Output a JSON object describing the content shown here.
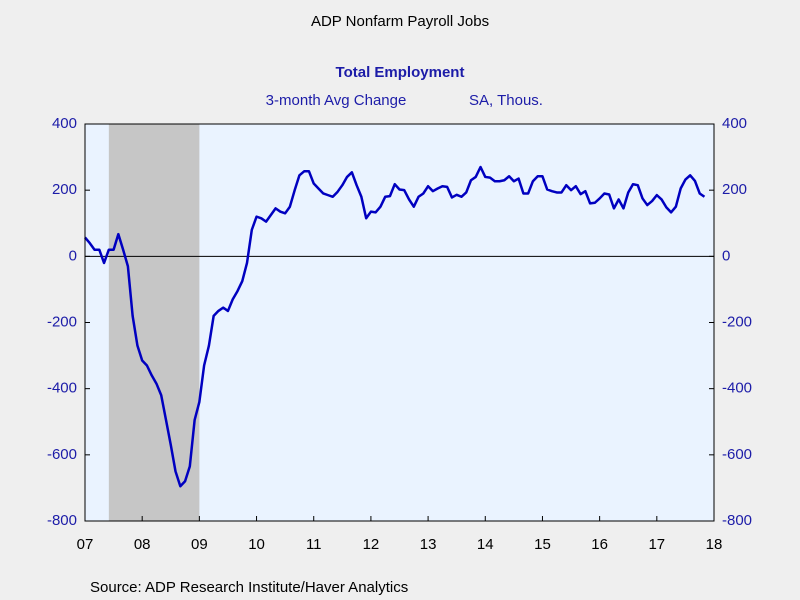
{
  "chart_data": {
    "type": "line",
    "title": "ADP Nonfarm Payroll Jobs",
    "subtitle": "Total Employment",
    "y_axis_label": "3-month Avg Change",
    "units_label": "SA, Thous.",
    "source": "Source:  ADP Research Institute/Haver Analytics",
    "x": [
      2007.5,
      2007.583,
      2007.667,
      2007.75,
      2007.833,
      2007.917,
      2008,
      2008.083,
      2008.167,
      2008.25,
      2008.333,
      2008.417,
      2008.5,
      2008.583,
      2008.667,
      2008.75,
      2008.833,
      2008.917,
      2009,
      2009.083,
      2009.167,
      2009.25,
      2009.333,
      2009.417,
      2009.5,
      2009.583,
      2009.667,
      2009.75,
      2009.833,
      2009.917,
      2010,
      2010.083,
      2010.167,
      2010.25,
      2010.333,
      2010.417,
      2010.5,
      2010.583,
      2010.667,
      2010.75,
      2010.833,
      2010.917,
      2011,
      2011.083,
      2011.167,
      2011.25,
      2011.333,
      2011.417,
      2011.5,
      2011.583,
      2011.667,
      2011.75,
      2011.833,
      2011.917,
      2012,
      2012.083,
      2012.167,
      2012.25,
      2012.333,
      2012.417,
      2012.5,
      2012.583,
      2012.667,
      2012.75,
      2012.833,
      2012.917,
      2013,
      2013.083,
      2013.167,
      2013.25,
      2013.333,
      2013.417,
      2013.5,
      2013.583,
      2013.667,
      2013.75,
      2013.833,
      2013.917,
      2014,
      2014.083,
      2014.167,
      2014.25,
      2014.333,
      2014.417,
      2014.5,
      2014.583,
      2014.667,
      2014.75,
      2014.833,
      2014.917,
      2015,
      2015.083,
      2015.167,
      2015.25,
      2015.333,
      2015.417,
      2015.5,
      2015.583,
      2015.667,
      2015.75,
      2015.833,
      2015.917,
      2016,
      2016.083,
      2016.167,
      2016.25,
      2016.333,
      2016.417,
      2016.5,
      2016.583,
      2016.667,
      2016.75,
      2016.833,
      2016.917,
      2017,
      2017.083,
      2017.167,
      2017.25,
      2017.333,
      2017.417,
      2017.5,
      2017.583,
      2017.667,
      2017.75,
      2017.833,
      2017.917,
      2018,
      2018.083,
      2018.167,
      2018.25,
      2018.333
    ],
    "series": [
      {
        "name": "Total Employment",
        "color": "#0000c0",
        "values": [
          57,
          40,
          20,
          20,
          -20,
          20,
          20,
          67,
          20,
          -30,
          -180,
          -270,
          -315,
          -330,
          -360,
          -385,
          -420,
          -495,
          -570,
          -650,
          -695,
          -680,
          -635,
          -495,
          -440,
          -330,
          -270,
          -180,
          -165,
          -155,
          -165,
          -130,
          -105,
          -75,
          -20,
          80,
          120,
          115,
          105,
          125,
          145,
          135,
          130,
          150,
          200,
          245,
          257,
          257,
          220,
          205,
          190,
          185,
          180,
          195,
          215,
          240,
          254,
          215,
          180,
          115,
          135,
          133,
          150,
          180,
          182,
          218,
          202,
          200,
          172,
          150,
          180,
          190,
          212,
          197,
          205,
          212,
          210,
          178,
          186,
          180,
          193,
          230,
          240,
          270,
          240,
          238,
          227,
          227,
          230,
          242,
          227,
          235,
          190,
          190,
          227,
          242,
          242,
          202,
          197,
          193,
          193,
          215,
          200,
          212,
          188,
          197,
          160,
          162,
          175,
          190,
          187,
          145,
          172,
          145,
          193,
          218,
          215,
          175,
          155,
          167,
          185,
          172,
          148,
          133,
          150,
          205,
          232,
          245,
          228,
          190,
          180
        ]
      }
    ],
    "recessions": [
      {
        "start": 2007.917,
        "end": 2009.5
      }
    ],
    "xlim": [
      2007.5,
      2018.5
    ],
    "xticks": [
      {
        "value": 2007.5,
        "label": "07"
      },
      {
        "value": 2008.5,
        "label": "08"
      },
      {
        "value": 2009.5,
        "label": "09"
      },
      {
        "value": 2010.5,
        "label": "10"
      },
      {
        "value": 2011.5,
        "label": "11"
      },
      {
        "value": 2012.5,
        "label": "12"
      },
      {
        "value": 2013.5,
        "label": "13"
      },
      {
        "value": 2014.5,
        "label": "14"
      },
      {
        "value": 2015.5,
        "label": "15"
      },
      {
        "value": 2016.5,
        "label": "16"
      },
      {
        "value": 2017.5,
        "label": "17"
      },
      {
        "value": 2018.5,
        "label": "18"
      }
    ],
    "ylim": [
      -800,
      400
    ],
    "yticks": [
      400,
      200,
      0,
      -200,
      -400,
      -600,
      -800
    ],
    "y2lim": [
      -800,
      400
    ],
    "y2ticks": [
      400,
      200,
      0,
      -200,
      -400,
      -600,
      -800
    ],
    "zero_line": true,
    "grid": false
  }
}
